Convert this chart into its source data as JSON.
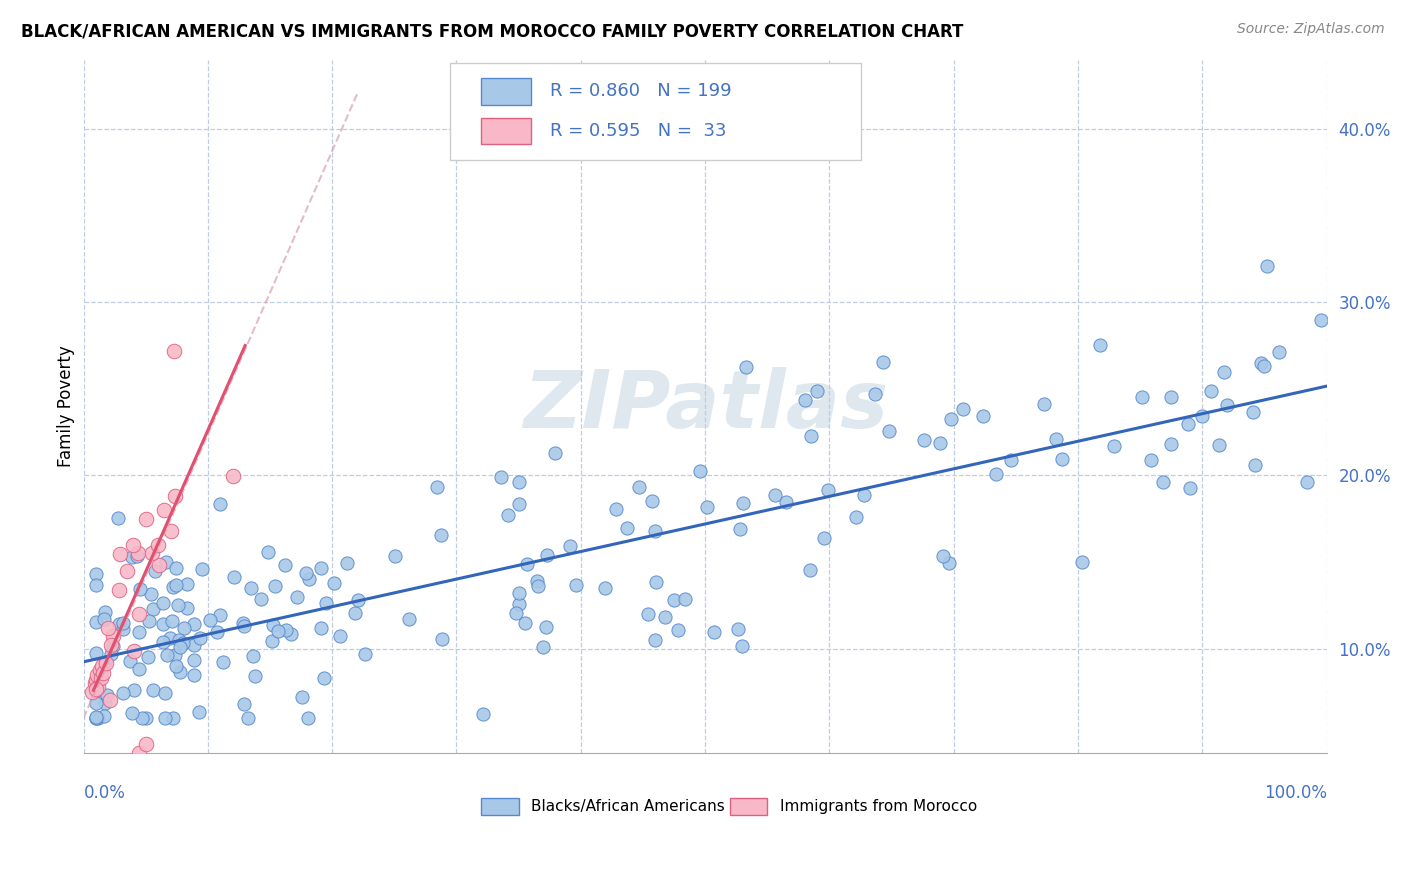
{
  "title": "BLACK/AFRICAN AMERICAN VS IMMIGRANTS FROM MOROCCO FAMILY POVERTY CORRELATION CHART",
  "source": "Source: ZipAtlas.com",
  "ylabel": "Family Poverty",
  "ytick_values": [
    0.1,
    0.2,
    0.3,
    0.4
  ],
  "xlim": [
    0.0,
    1.0
  ],
  "ylim": [
    0.04,
    0.44
  ],
  "blue_R": 0.86,
  "blue_N": 199,
  "pink_R": 0.595,
  "pink_N": 33,
  "blue_dot_color": "#a8c8e8",
  "blue_dot_edge": "#5588cc",
  "pink_dot_color": "#f8b8c8",
  "pink_dot_edge": "#e06080",
  "blue_line_color": "#3366bb",
  "pink_line_color": "#e05070",
  "pink_dash_color": "#d8a0b0",
  "legend_label_blue": "Blacks/African Americans",
  "legend_label_pink": "Immigrants from Morocco",
  "watermark_text": "ZIPatlas",
  "axis_label_color": "#4472c4",
  "title_fontsize": 12,
  "source_fontsize": 10
}
